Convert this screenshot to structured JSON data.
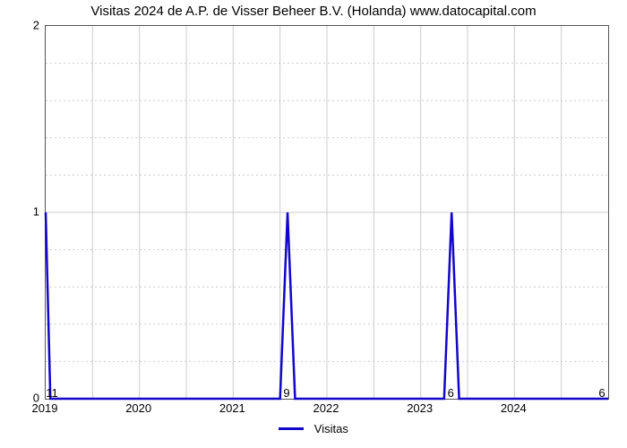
{
  "chart": {
    "type": "line",
    "title": "Visitas 2024 de A.P. de Visser Beheer B.V. (Holanda) www.datocapital.com",
    "title_fontsize": 15,
    "background_color": "#ffffff",
    "plot_border_color": "#555555",
    "grid_color": "#cccccc",
    "line_color": "#1206c8",
    "line_width": 2.5,
    "xlim": [
      2019,
      2025
    ],
    "ylim": [
      0,
      2
    ],
    "yticks": [
      0,
      1,
      2
    ],
    "yminor_count": 4,
    "xticks": [
      2019,
      2020,
      2021,
      2022,
      2023,
      2024
    ],
    "tick_fontsize": 13,
    "series": {
      "x": [
        2019.0,
        2019.05,
        2019.08,
        2021.5,
        2021.58,
        2021.66,
        2023.25,
        2023.33,
        2023.41,
        2024.92,
        2025.0
      ],
      "y": [
        1.0,
        0.0,
        0.0,
        0.0,
        1.0,
        0.0,
        0.0,
        1.0,
        0.0,
        0.0,
        0.0
      ]
    },
    "data_labels": [
      {
        "x": 2019.0,
        "text": "11"
      },
      {
        "x": 2021.58,
        "text": "9"
      },
      {
        "x": 2023.33,
        "text": "6"
      },
      {
        "x": 2025.0,
        "text": "6"
      }
    ],
    "legend": {
      "label": "Visitas"
    }
  }
}
